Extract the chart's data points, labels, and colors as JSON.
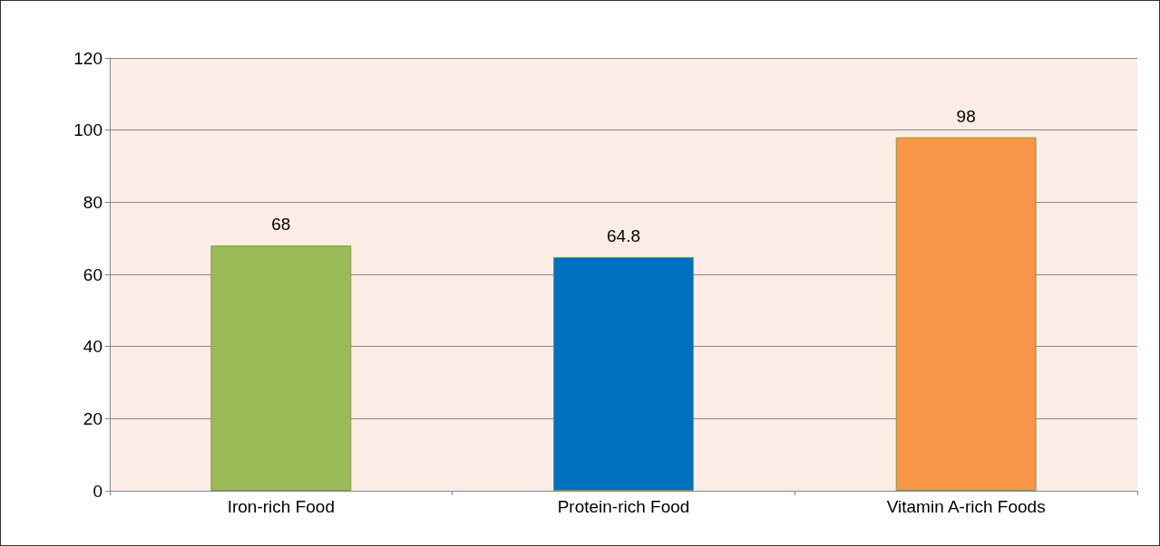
{
  "chart_data": {
    "type": "bar",
    "categories": [
      "Iron-rich Food",
      "Protein-rich Food",
      "Vitamin A-rich Foods"
    ],
    "values": [
      68,
      64.8,
      98
    ],
    "colors": [
      "#9bbb59",
      "#0070c0",
      "#f79646"
    ],
    "ylim": [
      0,
      120
    ],
    "yticks": [
      0,
      20,
      40,
      60,
      80,
      100,
      120
    ],
    "grid": "y",
    "data_labels": true
  }
}
